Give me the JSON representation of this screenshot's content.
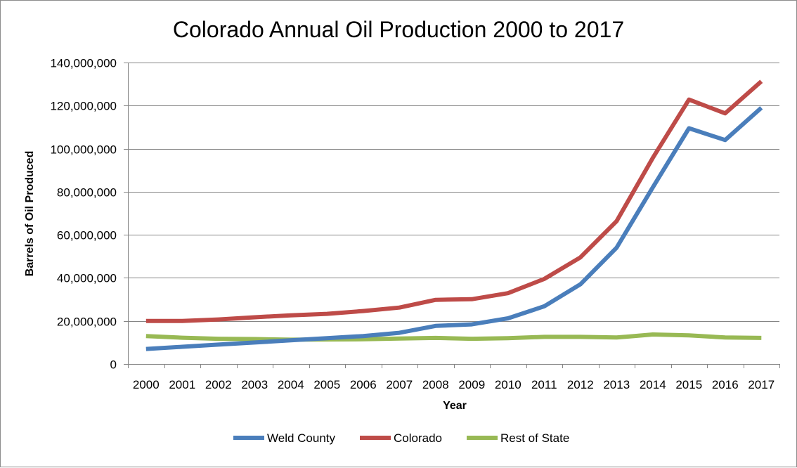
{
  "chart_data": {
    "type": "line",
    "title": "Colorado Annual Oil Production 2000 to 2017",
    "xlabel": "Year",
    "ylabel": "Barrels of Oil Produced",
    "ylim": [
      0,
      140000000
    ],
    "ytick_values": [
      0,
      20000000,
      40000000,
      60000000,
      80000000,
      100000000,
      120000000,
      140000000
    ],
    "ytick_labels": [
      "0",
      "20,000,000",
      "40,000,000",
      "60,000,000",
      "80,000,000",
      "100,000,000",
      "120,000,000",
      "140,000,000"
    ],
    "grid": true,
    "legend_position": "bottom",
    "categories": [
      "2000",
      "2001",
      "2002",
      "2003",
      "2004",
      "2005",
      "2006",
      "2007",
      "2008",
      "2009",
      "2010",
      "2011",
      "2012",
      "2013",
      "2014",
      "2015",
      "2016",
      "2017"
    ],
    "series": [
      {
        "name": "Weld County",
        "color": "#4a7ebb",
        "values": [
          7000000,
          8000000,
          9000000,
          10000000,
          11000000,
          12000000,
          13000000,
          14500000,
          17700000,
          18400000,
          21200000,
          26800000,
          37000000,
          54000000,
          82000000,
          109500000,
          104000000,
          119000000
        ]
      },
      {
        "name": "Colorado",
        "color": "#be4b48",
        "values": [
          20000000,
          20000000,
          20700000,
          21700000,
          22600000,
          23300000,
          24600000,
          26200000,
          29800000,
          30100000,
          32900000,
          39500000,
          49500000,
          66300000,
          95700000,
          122800000,
          116400000,
          131300000
        ]
      },
      {
        "name": "Rest of State",
        "color": "#98b954",
        "values": [
          13000000,
          12200000,
          11700000,
          11600000,
          11300000,
          11400000,
          11500000,
          11800000,
          12100000,
          11700000,
          12000000,
          12600000,
          12600000,
          12300000,
          13700000,
          13300000,
          12300000,
          12100000
        ]
      }
    ]
  }
}
